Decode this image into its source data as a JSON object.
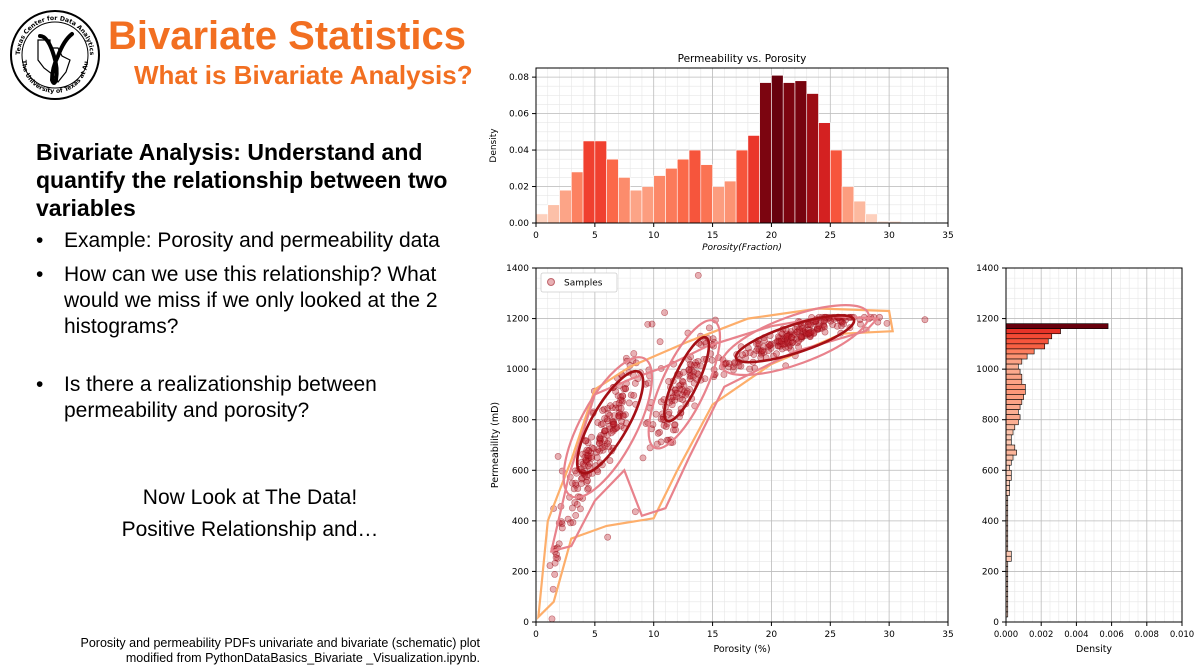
{
  "header": {
    "title": "Bivariate Statistics",
    "subtitle": "What is Bivariate Analysis?",
    "logo_text_top": "Texas Center for Data Analytics and Geostatistics",
    "logo_text_bottom": "The University of Texas at Austin"
  },
  "body": {
    "heading": "Bivariate Analysis: Understand and quantify the relationship between two variables",
    "bullets": [
      "Example: Porosity and permeability data",
      "How can we use this relationship? What would we miss if we only looked at the 2 histograms?",
      "Is there a realizationship between permeability and porosity?"
    ],
    "line1": "Now Look at The Data!",
    "line2": "Positive Relationship and…"
  },
  "caption": {
    "line1": "Porosity and permeability PDFs univariate and bivariate (schematic) plot",
    "line2": "modified from PythonDataBasics_Bivariate _Visualization.ipynb."
  },
  "colors": {
    "accent": "#F26F21",
    "dark_red": "#67000d",
    "light": "#fdd7c5"
  },
  "chart_data": [
    {
      "type": "bar",
      "title": "Permeability vs. Porosity",
      "xlabel": "Porosity(Fraction)",
      "ylabel": "Density",
      "xlim": [
        0,
        35
      ],
      "ylim": [
        0,
        0.085
      ],
      "xticks": [
        0,
        5,
        10,
        15,
        20,
        25,
        30,
        35
      ],
      "yticks": [
        0.0,
        0.02,
        0.04,
        0.06,
        0.08
      ],
      "bin_width": 1.0,
      "bin_starts": [
        0,
        1,
        2,
        3,
        4,
        5,
        6,
        7,
        8,
        9,
        10,
        11,
        12,
        13,
        14,
        15,
        16,
        17,
        18,
        19,
        20,
        21,
        22,
        23,
        24,
        25,
        26,
        27,
        28,
        29,
        30
      ],
      "values": [
        0.005,
        0.01,
        0.018,
        0.028,
        0.045,
        0.045,
        0.035,
        0.025,
        0.018,
        0.02,
        0.026,
        0.03,
        0.035,
        0.04,
        0.032,
        0.02,
        0.023,
        0.04,
        0.048,
        0.077,
        0.081,
        0.077,
        0.078,
        0.071,
        0.055,
        0.04,
        0.02,
        0.012,
        0.005,
        0.001,
        0.001
      ],
      "grid": true
    },
    {
      "type": "scatter",
      "legend": [
        "Samples"
      ],
      "legend_position": "upper-left",
      "xlabel": "Porosity (%)",
      "ylabel": "Permeability (mD)",
      "xlim": [
        0,
        35
      ],
      "ylim": [
        0,
        1400
      ],
      "xticks": [
        0,
        5,
        10,
        15,
        20,
        25,
        30,
        35
      ],
      "yticks": [
        0,
        200,
        400,
        600,
        800,
        1000,
        1200,
        1400
      ],
      "clusters": [
        {
          "x_center": 6,
          "y_center": 760,
          "x_spread": 2.0,
          "y_spread": 120
        },
        {
          "x_center": 12.5,
          "y_center": 930,
          "x_spread": 1.6,
          "y_spread": 130
        },
        {
          "x_center": 22,
          "y_center": 1120,
          "x_spread": 4.0,
          "y_spread": 60
        }
      ],
      "grid": true
    },
    {
      "type": "bar",
      "orientation": "horizontal",
      "xlabel": "Density",
      "xlim": [
        0,
        0.01
      ],
      "ylim": [
        0,
        1400
      ],
      "xticks": [
        0.0,
        0.002,
        0.004,
        0.006,
        0.008,
        0.01
      ],
      "yticks": [
        0,
        200,
        400,
        600,
        800,
        1000,
        1200,
        1400
      ],
      "bin_width": 20,
      "bin_starts": [
        1160,
        1140,
        1120,
        1100,
        1080,
        1060,
        1040,
        1020,
        1000,
        980,
        960,
        940,
        920,
        900,
        880,
        860,
        840,
        820,
        800,
        780,
        760,
        740,
        720,
        700,
        680,
        660,
        640,
        620,
        600,
        580,
        560,
        540,
        520,
        500,
        480,
        460,
        440,
        420,
        400,
        380,
        360,
        340,
        320,
        300,
        280,
        260,
        240,
        220,
        200,
        180,
        160,
        140,
        120,
        100,
        80,
        60,
        40,
        20
      ],
      "values": [
        0.0058,
        0.0031,
        0.0026,
        0.0024,
        0.0022,
        0.0016,
        0.0012,
        0.0009,
        0.0007,
        0.0008,
        0.0009,
        0.0009,
        0.0011,
        0.0011,
        0.001,
        0.0009,
        0.0008,
        0.0007,
        0.0008,
        0.0007,
        0.0005,
        0.0004,
        0.0003,
        0.0003,
        0.0005,
        0.0006,
        0.0004,
        0.0003,
        0.0002,
        0.0003,
        0.0003,
        0.0002,
        0.0002,
        0.0002,
        0.0001,
        0.0001,
        0.0001,
        0.0001,
        0.0001,
        0.0001,
        0.0001,
        0.0001,
        0.0001,
        0.0001,
        0.0001,
        0.0003,
        0.0003,
        0.0001,
        0.0001,
        0.0001,
        0.0001,
        0.0001,
        0.0001,
        0.0001,
        0.0001,
        0.0001,
        0.0001,
        0.0001
      ],
      "grid": true
    }
  ]
}
